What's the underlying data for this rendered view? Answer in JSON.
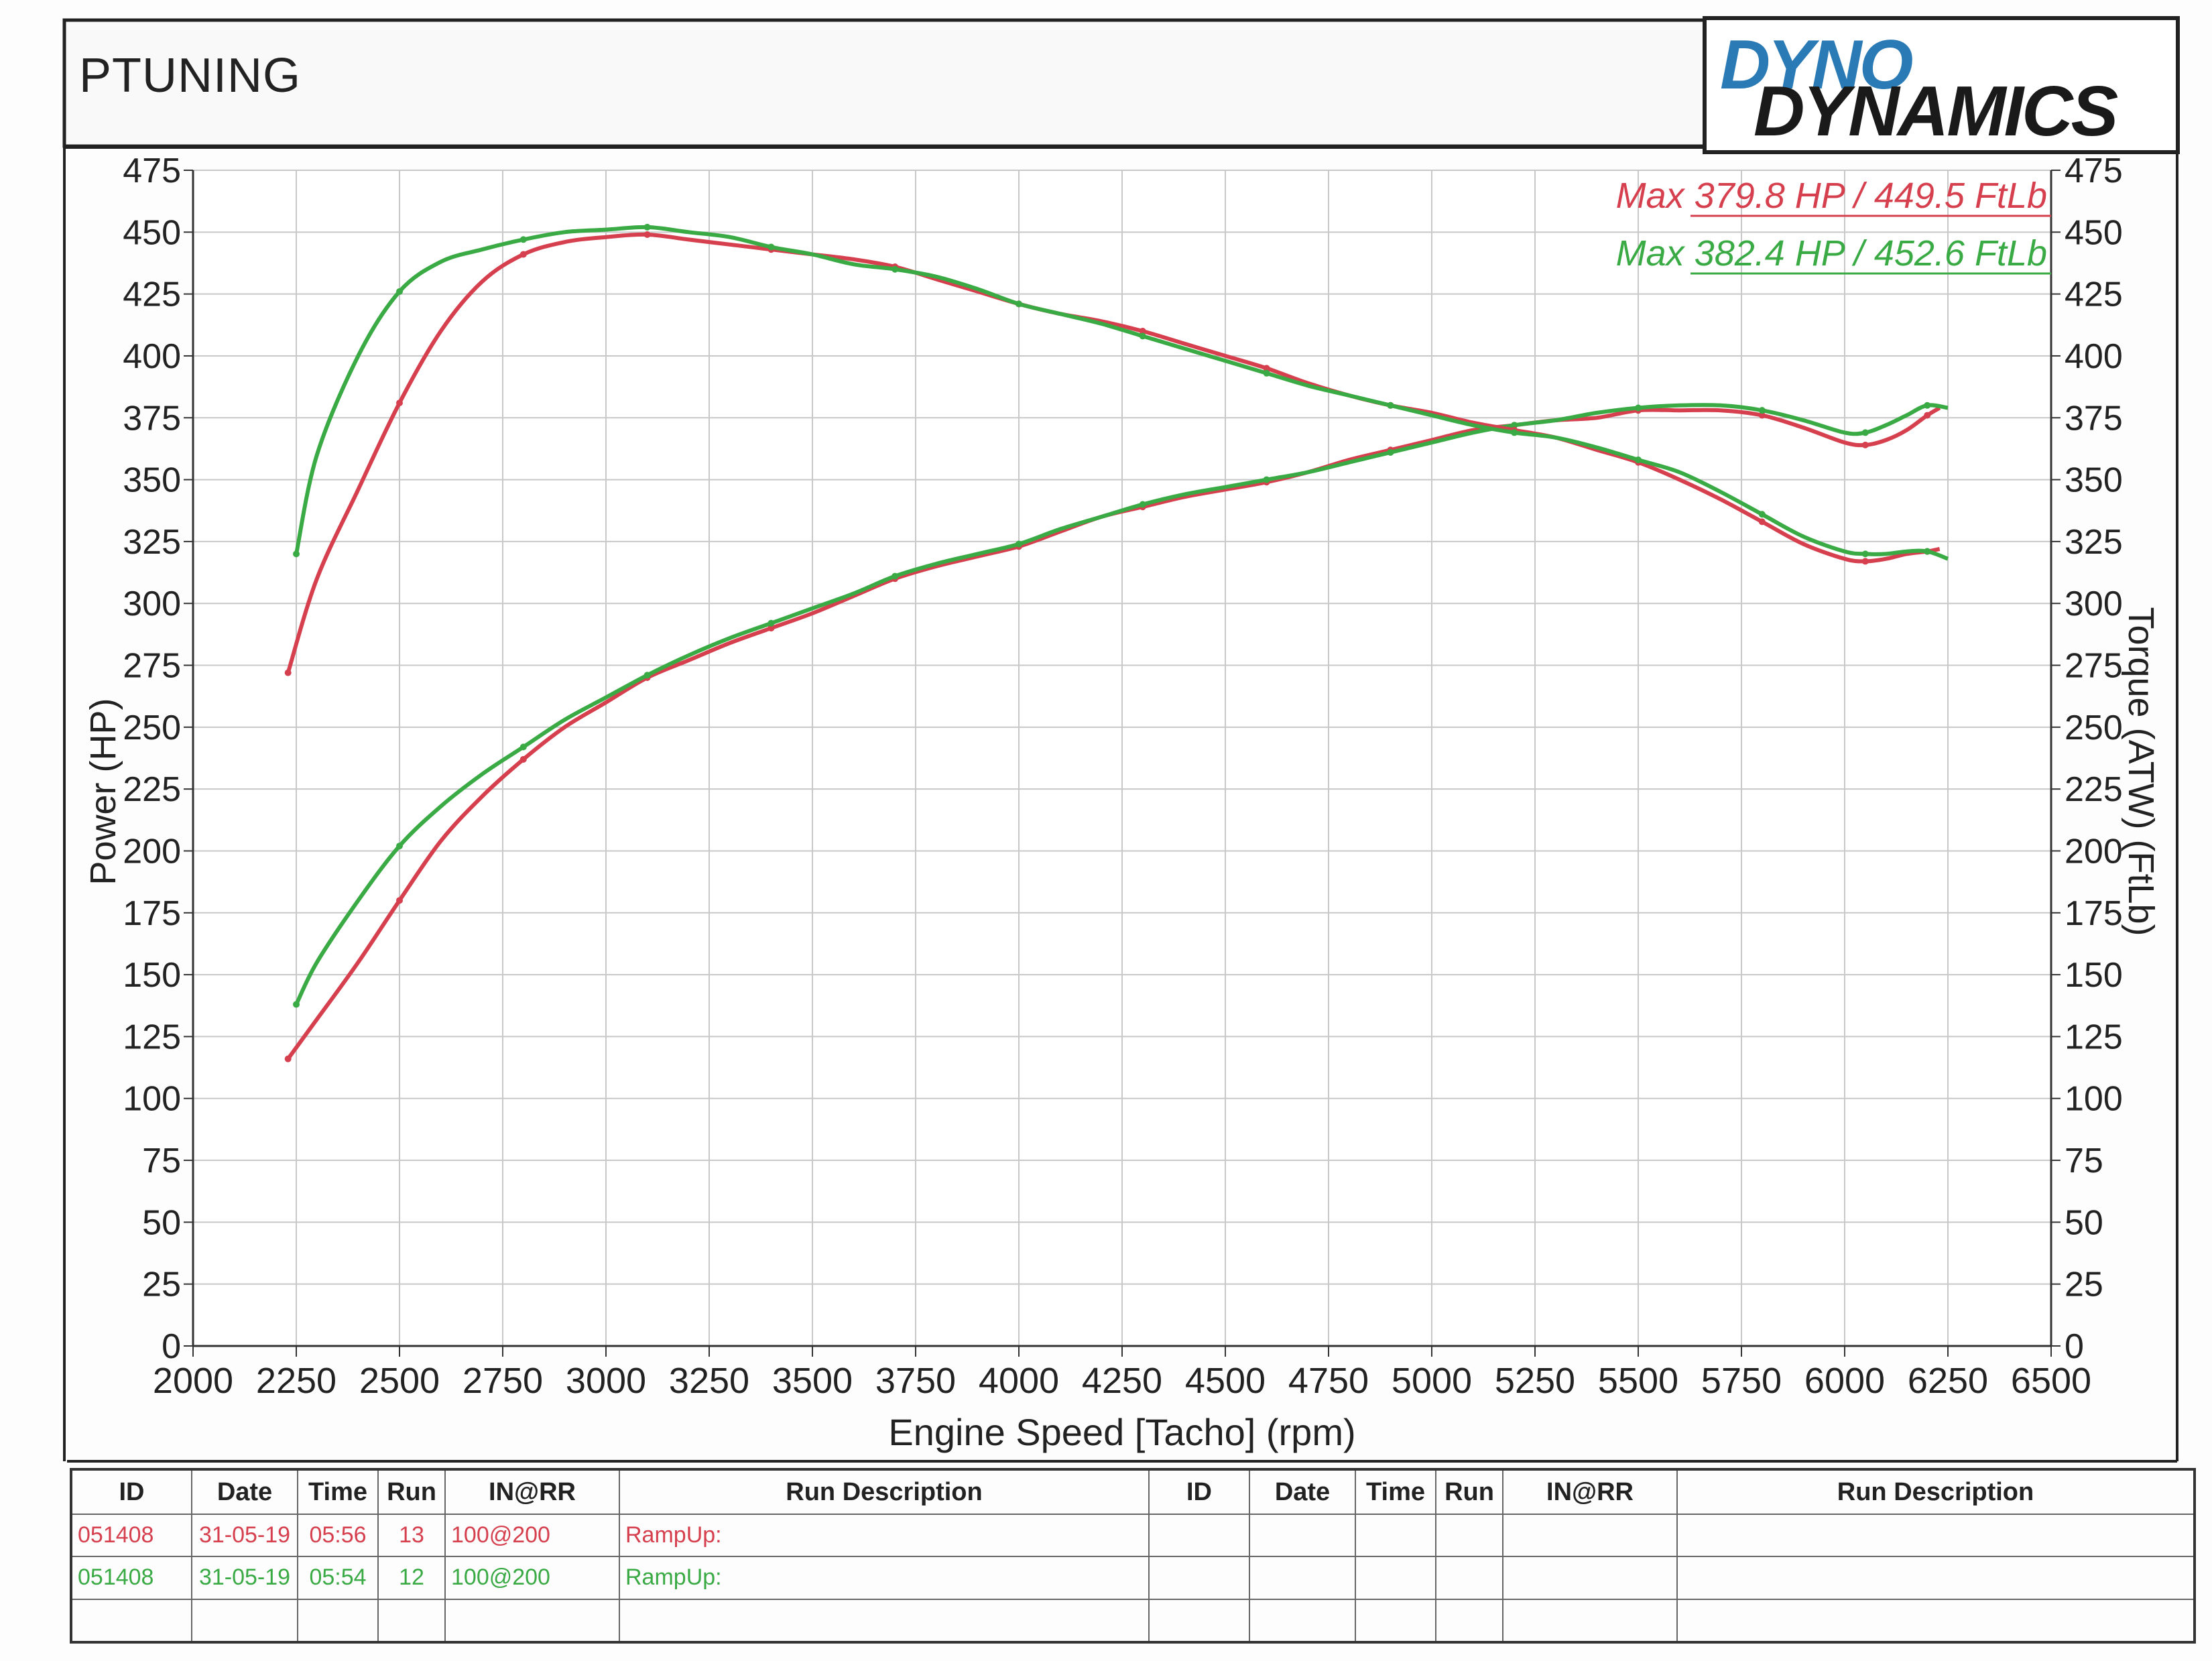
{
  "header": {
    "title": "PTUNING"
  },
  "logo": {
    "line1": "DYNO",
    "line2": "DYNAMICS"
  },
  "colors": {
    "run_red": "#d6404e",
    "run_green": "#3aaa45",
    "grid": "#c8c8c8"
  },
  "chart_data": {
    "type": "line",
    "xlabel": "Engine Speed [Tacho] (rpm)",
    "ylabel_left": "Power (HP)",
    "ylabel_right": "Torque (ATW) (FtLb)",
    "xlim": [
      2000,
      6500
    ],
    "ylim": [
      0,
      475
    ],
    "x_ticks": [
      "2000",
      "2250",
      "2500",
      "2750",
      "3000",
      "3250",
      "3500",
      "3750",
      "4000",
      "4250",
      "4500",
      "4750",
      "5000",
      "5250",
      "5500",
      "5750",
      "6000",
      "6250",
      "6500"
    ],
    "y_ticks": [
      "0",
      "25",
      "50",
      "75",
      "100",
      "125",
      "150",
      "175",
      "200",
      "225",
      "250",
      "275",
      "300",
      "325",
      "350",
      "375",
      "400",
      "425",
      "450",
      "475"
    ],
    "grid": true,
    "legend_position": "top-right",
    "legend": [
      {
        "text": "Max 379.8 HP  / 449.5 FtLb",
        "color": "#d6404e"
      },
      {
        "text": "Max 382.4 HP  / 452.6 FtLb",
        "color": "#3aaa45"
      }
    ],
    "series": [
      {
        "color": "#d6404e",
        "quantity": "power",
        "x": [
          2230,
          2300,
          2400,
          2500,
          2600,
          2700,
          2800,
          2900,
          3000,
          3100,
          3200,
          3300,
          3400,
          3500,
          3600,
          3700,
          3800,
          3900,
          4000,
          4100,
          4200,
          4300,
          4400,
          4500,
          4600,
          4700,
          4800,
          4900,
          5000,
          5100,
          5200,
          5300,
          5400,
          5500,
          5600,
          5700,
          5800,
          5900,
          6000,
          6050,
          6100,
          6150,
          6200,
          6230
        ],
        "y": [
          116,
          132,
          155,
          180,
          204,
          222,
          237,
          250,
          260,
          270,
          277,
          284,
          290,
          296,
          303,
          310,
          315,
          319,
          323,
          329,
          335,
          339,
          343,
          346,
          349,
          353,
          358,
          362,
          366,
          370,
          372,
          374,
          375,
          378,
          378,
          378,
          376,
          371,
          365,
          364,
          366,
          370,
          376,
          379
        ]
      },
      {
        "color": "#3aaa45",
        "quantity": "power",
        "x": [
          2250,
          2300,
          2400,
          2500,
          2600,
          2700,
          2800,
          2900,
          3000,
          3100,
          3200,
          3300,
          3400,
          3500,
          3600,
          3700,
          3800,
          3900,
          4000,
          4100,
          4200,
          4300,
          4400,
          4500,
          4600,
          4700,
          4800,
          4900,
          5000,
          5100,
          5200,
          5300,
          5400,
          5500,
          5600,
          5700,
          5800,
          5900,
          6000,
          6050,
          6100,
          6150,
          6200,
          6250
        ],
        "y": [
          138,
          155,
          180,
          202,
          218,
          231,
          242,
          253,
          262,
          271,
          279,
          286,
          292,
          298,
          304,
          311,
          316,
          320,
          324,
          330,
          335,
          340,
          344,
          347,
          350,
          353,
          357,
          361,
          365,
          369,
          372,
          374,
          377,
          379,
          380,
          380,
          378,
          374,
          369,
          369,
          372,
          376,
          380,
          379
        ]
      },
      {
        "color": "#d6404e",
        "quantity": "torque",
        "x": [
          2230,
          2300,
          2400,
          2500,
          2600,
          2700,
          2800,
          2900,
          3000,
          3100,
          3200,
          3300,
          3400,
          3500,
          3600,
          3700,
          3800,
          3900,
          4000,
          4100,
          4200,
          4300,
          4400,
          4500,
          4600,
          4700,
          4800,
          4900,
          5000,
          5100,
          5200,
          5300,
          5400,
          5500,
          5600,
          5700,
          5800,
          5900,
          6000,
          6050,
          6100,
          6150,
          6200,
          6230
        ],
        "y": [
          272,
          310,
          346,
          381,
          410,
          430,
          441,
          446,
          448,
          449,
          447,
          445,
          443,
          441,
          439,
          436,
          431,
          426,
          421,
          417,
          414,
          410,
          405,
          400,
          395,
          389,
          384,
          380,
          377,
          373,
          370,
          367,
          362,
          357,
          350,
          342,
          333,
          324,
          318,
          317,
          318,
          320,
          321,
          322
        ]
      },
      {
        "color": "#3aaa45",
        "quantity": "torque",
        "x": [
          2250,
          2300,
          2400,
          2500,
          2600,
          2700,
          2800,
          2900,
          3000,
          3100,
          3200,
          3300,
          3400,
          3500,
          3600,
          3700,
          3800,
          3900,
          4000,
          4100,
          4200,
          4300,
          4400,
          4500,
          4600,
          4700,
          4800,
          4900,
          5000,
          5100,
          5200,
          5300,
          5400,
          5500,
          5600,
          5700,
          5800,
          5900,
          6000,
          6050,
          6100,
          6150,
          6200,
          6250
        ],
        "y": [
          320,
          360,
          400,
          426,
          438,
          443,
          447,
          450,
          451,
          452,
          450,
          448,
          444,
          441,
          437,
          435,
          432,
          427,
          421,
          417,
          413,
          408,
          403,
          398,
          393,
          388,
          384,
          380,
          376,
          372,
          369,
          367,
          363,
          358,
          353,
          345,
          336,
          327,
          321,
          320,
          320,
          321,
          321,
          318
        ]
      }
    ]
  },
  "table": {
    "headers": [
      "ID",
      "Date",
      "Time",
      "Run",
      "IN@RR",
      "Run Description",
      "ID",
      "Date",
      "Time",
      "Run",
      "IN@RR",
      "Run Description"
    ],
    "rows": [
      [
        "051408",
        "31-05-19",
        "05:56",
        "13",
        "100@200",
        "RampUp:",
        "",
        "",
        "",
        "",
        "",
        ""
      ],
      [
        "051408",
        "31-05-19",
        "05:54",
        "12",
        "100@200",
        "RampUp:",
        "",
        "",
        "",
        "",
        "",
        ""
      ],
      [
        "",
        "",
        "",
        "",
        "",
        "",
        "",
        "",
        "",
        "",
        "",
        ""
      ]
    ]
  }
}
